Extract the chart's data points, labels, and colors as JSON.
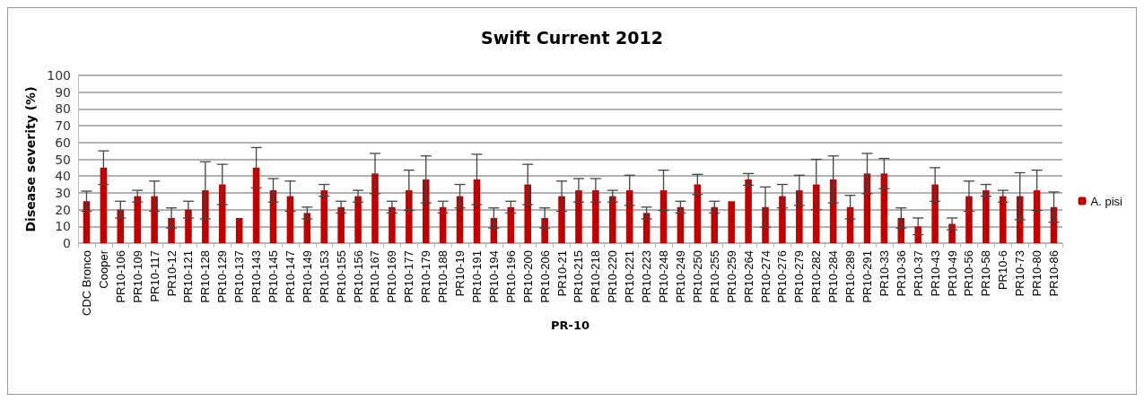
{
  "chart_data": {
    "type": "bar",
    "title": "Swift Current 2012",
    "xlabel": "PR-10",
    "ylabel": "Disease severity (%)",
    "categories": [
      "CDC Bronco",
      "Cooper",
      "PR10-106",
      "PR10-109",
      "PR10-117",
      "PR10-12",
      "PR10-121",
      "PR10-128",
      "PR10-129",
      "PR10-137",
      "PR10-143",
      "PR10-145",
      "PR10-147",
      "PR10-149",
      "PR10-153",
      "PR10-155",
      "PR10-156",
      "PR10-167",
      "PR10-169",
      "PR10-177",
      "PR10-179",
      "PR10-188",
      "PR10-19",
      "PR10-191",
      "PR10-194",
      "PR10-196",
      "PR10-200",
      "PR10-206",
      "PR10-21",
      "PR10-215",
      "PR10-218",
      "PR10-220",
      "PR10-221",
      "PR10-223",
      "PR10-248",
      "PR10-249",
      "PR10-250",
      "PR10-255",
      "PR10-259",
      "PR10-264",
      "PR10-274",
      "PR10-276",
      "PR10-279",
      "PR10-282",
      "PR10-284",
      "PR10-289",
      "PR10-291",
      "PR10-33",
      "PR10-36",
      "PR10-37",
      "PR10-43",
      "PR10-49",
      "PR10-56",
      "PR10-58",
      "PR10-6",
      "PR10-73",
      "PR10-80",
      "PR10-86"
    ],
    "series": [
      {
        "name": "A. pisi",
        "color": "#c00000",
        "values": [
          25,
          45,
          20,
          28,
          28,
          15,
          20,
          31.5,
          35,
          15,
          45,
          31.5,
          28,
          18,
          31.5,
          21.5,
          28,
          41.5,
          21.5,
          31.5,
          38,
          21.5,
          28,
          38,
          15,
          21.5,
          35,
          15,
          28,
          31.5,
          31.5,
          28,
          31.5,
          18,
          31.5,
          21.5,
          35,
          21.5,
          25,
          38,
          21.5,
          28,
          31.5,
          35,
          38,
          21.5,
          41.5,
          41.5,
          15,
          10,
          35,
          11.5,
          28,
          31.5,
          28,
          28,
          31.5,
          21.5
        ],
        "errors": [
          6,
          10,
          5,
          3.5,
          9,
          6,
          5,
          17,
          12,
          null,
          12,
          7,
          9,
          3.5,
          3.5,
          3.5,
          3.5,
          12,
          3.5,
          12,
          14,
          3.5,
          7,
          15,
          6,
          3.5,
          12,
          6,
          9,
          7,
          7,
          3.5,
          9,
          3.5,
          12,
          3.5,
          6,
          3.5,
          null,
          3.5,
          12,
          7,
          9,
          15,
          14,
          7,
          12,
          9,
          6,
          5,
          10,
          3.5,
          9,
          3.5,
          3.5,
          14,
          12,
          9
        ]
      }
    ],
    "ylim": [
      0,
      100
    ],
    "yticks": [
      0,
      10,
      20,
      30,
      40,
      50,
      60,
      70,
      80,
      90,
      100
    ],
    "grid": "y",
    "legend": "right"
  }
}
